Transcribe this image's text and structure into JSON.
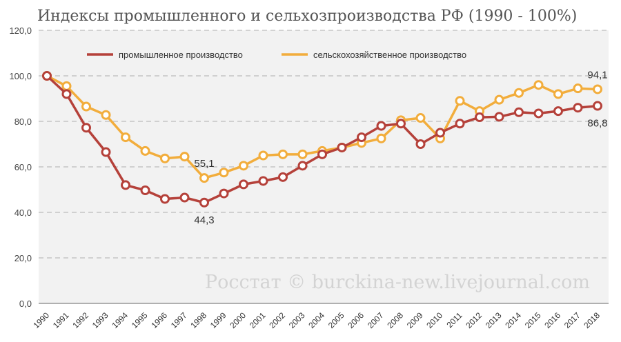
{
  "chart_data": {
    "type": "line",
    "title": "Индексы промышленного и сельхозпроизводства РФ (1990 - 100%)",
    "xlabel": "",
    "ylabel": "",
    "ylim": [
      0,
      120
    ],
    "yticks": [
      "0,0",
      "20,0",
      "40,0",
      "60,0",
      "80,0",
      "100,0",
      "120,0"
    ],
    "categories": [
      "1990",
      "1991",
      "1992",
      "1993",
      "1994",
      "1995",
      "1996",
      "1997",
      "1998",
      "1999",
      "2000",
      "2001",
      "2002",
      "2003",
      "2004",
      "2005",
      "2006",
      "2007",
      "2008",
      "2009",
      "2010",
      "2011",
      "2012",
      "2013",
      "2014",
      "2015",
      "2016",
      "2017",
      "2018"
    ],
    "series": [
      {
        "name": "промышленное производство",
        "color": "#b5413a",
        "values": [
          100,
          92,
          77.2,
          66.5,
          52,
          49.7,
          45.9,
          46.5,
          44.3,
          48.3,
          52.3,
          53.8,
          55.5,
          60.5,
          65.5,
          68.5,
          73,
          78,
          79,
          70,
          75,
          79,
          81.8,
          82,
          84,
          83.5,
          84.5,
          86,
          86.8
        ]
      },
      {
        "name": "сельскохозяйственное производство",
        "color": "#f2ad3c",
        "values": [
          100,
          95.5,
          86.5,
          82.8,
          73,
          67,
          63.7,
          64.5,
          55.1,
          57.5,
          60.5,
          65,
          65.5,
          65.5,
          67,
          68.5,
          70.5,
          72.5,
          80.5,
          81.5,
          72.5,
          89,
          84.5,
          89.5,
          92.5,
          96,
          92,
          94.5,
          94.1
        ]
      }
    ],
    "annotations": [
      {
        "series": 0,
        "index": 8,
        "text": "44,3",
        "position": "below"
      },
      {
        "series": 1,
        "index": 8,
        "text": "55,1",
        "position": "above"
      },
      {
        "series": 1,
        "index": 28,
        "text": "94,1",
        "position": "above"
      },
      {
        "series": 0,
        "index": 28,
        "text": "86,8",
        "position": "below"
      }
    ],
    "legend": "top-left",
    "grid": true,
    "watermark": "Росстат © burckina-new.livejournal.com"
  }
}
